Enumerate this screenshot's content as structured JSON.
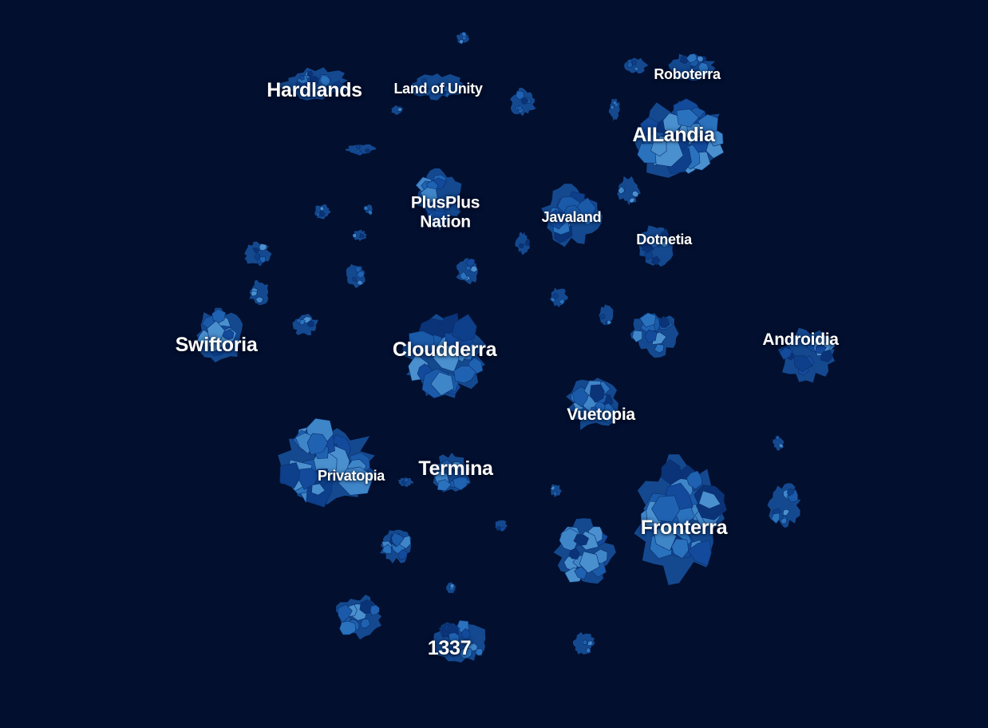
{
  "map": {
    "background": "#020f2e",
    "cell_colors": [
      "#0d3f8a",
      "#1a5aa8",
      "#2a72bd",
      "#3f86c9",
      "#134a9c",
      "#0a3378",
      "#4a90cf",
      "#1f62b2"
    ],
    "regions": [
      {
        "id": "hardlands",
        "label": "Hardlands"
      },
      {
        "id": "land-of-unity",
        "label": "Land of Unity"
      },
      {
        "id": "roboterra",
        "label": "Roboterra"
      },
      {
        "id": "ailandia",
        "label": "AILandia"
      },
      {
        "id": "plusplus-nation",
        "label": "PlusPlus\nNation"
      },
      {
        "id": "javaland",
        "label": "Javaland"
      },
      {
        "id": "dotnetia",
        "label": "Dotnetia"
      },
      {
        "id": "swiftoria",
        "label": "Swiftoria"
      },
      {
        "id": "cloudderra",
        "label": "Cloudderra"
      },
      {
        "id": "androidia",
        "label": "Androidia"
      },
      {
        "id": "vuetopia",
        "label": "Vuetopia"
      },
      {
        "id": "privatopia",
        "label": "Privatopia"
      },
      {
        "id": "termina",
        "label": "Termina"
      },
      {
        "id": "fronterra",
        "label": "Fronterra"
      },
      {
        "id": "1337",
        "label": "1337"
      }
    ]
  }
}
